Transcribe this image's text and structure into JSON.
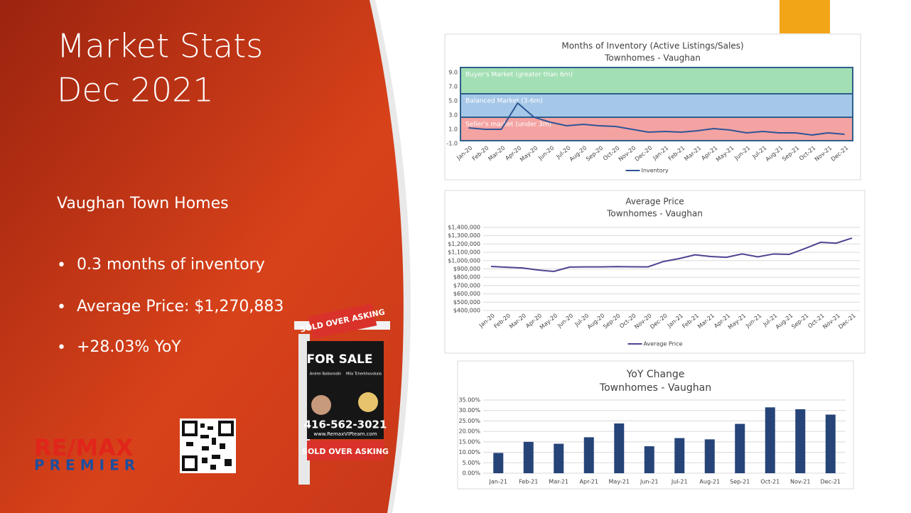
{
  "slide": {
    "title_lines": [
      "Market Stats",
      "Dec 2021"
    ],
    "heading": "Vaughan Town Homes",
    "bullets": [
      "0.3 months of inventory",
      "Average Price: $1,270,883",
      "+28.03% YoY"
    ],
    "logo": {
      "brand": "RE/MAX",
      "office": "PREMIER"
    },
    "sign": {
      "rider_top": "SOLD OVER ASKING",
      "headline": "FOR SALE",
      "agent_1": "Andrei Baiborodin",
      "agent_2": "Mila Tcherkhovskaia",
      "phone": "416-562-3021",
      "website": "www.RemaxVIPteam.com",
      "rider_bottom": "SOLD OVER ASKING"
    }
  },
  "chart_data": [
    {
      "type": "line",
      "title": "Months of Inventory (Active Listings/Sales)",
      "subtitle": "Townhomes - Vaughan",
      "categories": [
        "Jan-20",
        "Feb-20",
        "Mar-20",
        "Apr-20",
        "May-20",
        "Jun-20",
        "Jul-20",
        "Aug-20",
        "Sep-20",
        "Oct-20",
        "Nov-20",
        "Dec-20",
        "Jan-21",
        "Feb-21",
        "Mar-21",
        "Apr-21",
        "May-21",
        "Jun-21",
        "Jul-21",
        "Aug-21",
        "Sep-21",
        "Oct-21",
        "Nov-21",
        "Dec-21"
      ],
      "series": [
        {
          "name": "Inventory",
          "color": "#2f5597",
          "values": [
            1.2,
            1.0,
            1.0,
            4.7,
            2.7,
            2.0,
            1.5,
            1.7,
            1.5,
            1.4,
            1.0,
            0.6,
            0.7,
            0.6,
            0.8,
            1.1,
            0.9,
            0.5,
            0.7,
            0.5,
            0.5,
            0.2,
            0.5,
            0.3
          ]
        }
      ],
      "bands": [
        {
          "label": "Seller's market (under 3m)",
          "from": -0.6,
          "to": 2.7,
          "color": "#f4a3a3"
        },
        {
          "label": "Balanced Market (3-6m)",
          "from": 2.7,
          "to": 6.0,
          "color": "#a6c8e8"
        },
        {
          "label": "Buyer's Market (greater than 6m)",
          "from": 6.0,
          "to": 9.7,
          "color": "#a3dfb4"
        }
      ],
      "ylim": [
        -1,
        10
      ],
      "yticks": [
        {
          "value": -1,
          "label": "-1.0"
        },
        {
          "value": 1,
          "label": "1.0"
        },
        {
          "value": 3,
          "label": "3.0"
        },
        {
          "value": 5,
          "label": "5.0"
        },
        {
          "value": 7,
          "label": "7.0"
        },
        {
          "value": 9,
          "label": "9.0"
        }
      ],
      "grid": false,
      "legend": "bottom"
    },
    {
      "type": "line",
      "title": "Average Price",
      "subtitle": "Townhomes - Vaughan",
      "categories": [
        "Jan-20",
        "Feb-20",
        "Mar-20",
        "Apr-20",
        "May-20",
        "Jun-20",
        "Jul-20",
        "Aug-20",
        "Sep-20",
        "Oct-20",
        "Nov-20",
        "Dec-20",
        "Jan-21",
        "Feb-21",
        "Mar-21",
        "Apr-21",
        "May-21",
        "Jun-21",
        "Jul-21",
        "Aug-21",
        "Sep-21",
        "Oct-21",
        "Nov-21",
        "Dec-21"
      ],
      "series": [
        {
          "name": "Average Price",
          "color": "#4e4391",
          "values": [
            930000,
            920000,
            912000,
            887000,
            870000,
            922000,
            925000,
            925000,
            928000,
            926000,
            925000,
            990000,
            1025000,
            1070000,
            1050000,
            1040000,
            1080000,
            1045000,
            1080000,
            1075000,
            1145000,
            1220000,
            1210000,
            1270883
          ]
        }
      ],
      "ylim": [
        400000,
        1400000
      ],
      "yticks": [
        {
          "value": 400000,
          "label": "$400,000"
        },
        {
          "value": 500000,
          "label": "$500,000"
        },
        {
          "value": 600000,
          "label": "$600,000"
        },
        {
          "value": 700000,
          "label": "$700,000"
        },
        {
          "value": 800000,
          "label": "$800,000"
        },
        {
          "value": 900000,
          "label": "$900,000"
        },
        {
          "value": 1000000,
          "label": "$1,000,000"
        },
        {
          "value": 1100000,
          "label": "$1,100,000"
        },
        {
          "value": 1200000,
          "label": "$1,200,000"
        },
        {
          "value": 1300000,
          "label": "$1,300,000"
        },
        {
          "value": 1400000,
          "label": "$1,400,000"
        }
      ],
      "grid": true,
      "legend": "bottom"
    },
    {
      "type": "bar",
      "title": "YoY Change",
      "subtitle": "Townhomes - Vaughan",
      "categories": [
        "Jan-21",
        "Feb-21",
        "Mar-21",
        "Apr-21",
        "May-21",
        "Jun-21",
        "Jul-21",
        "Aug-21",
        "Sep-21",
        "Oct-21",
        "Nov-21",
        "Dec-21"
      ],
      "values": [
        9.7,
        15.0,
        14.1,
        17.2,
        23.8,
        12.9,
        16.8,
        16.2,
        23.6,
        31.5,
        30.6,
        28.03
      ],
      "color": "#264478",
      "ylim": [
        0,
        35
      ],
      "yticks": [
        {
          "value": 0,
          "label": "0.00%"
        },
        {
          "value": 5,
          "label": "5.00%"
        },
        {
          "value": 10,
          "label": "10.00%"
        },
        {
          "value": 15,
          "label": "15.00%"
        },
        {
          "value": 20,
          "label": "20.00%"
        },
        {
          "value": 25,
          "label": "25.00%"
        },
        {
          "value": 30,
          "label": "30.00%"
        },
        {
          "value": 35,
          "label": "35.00%"
        }
      ],
      "grid": true
    }
  ]
}
